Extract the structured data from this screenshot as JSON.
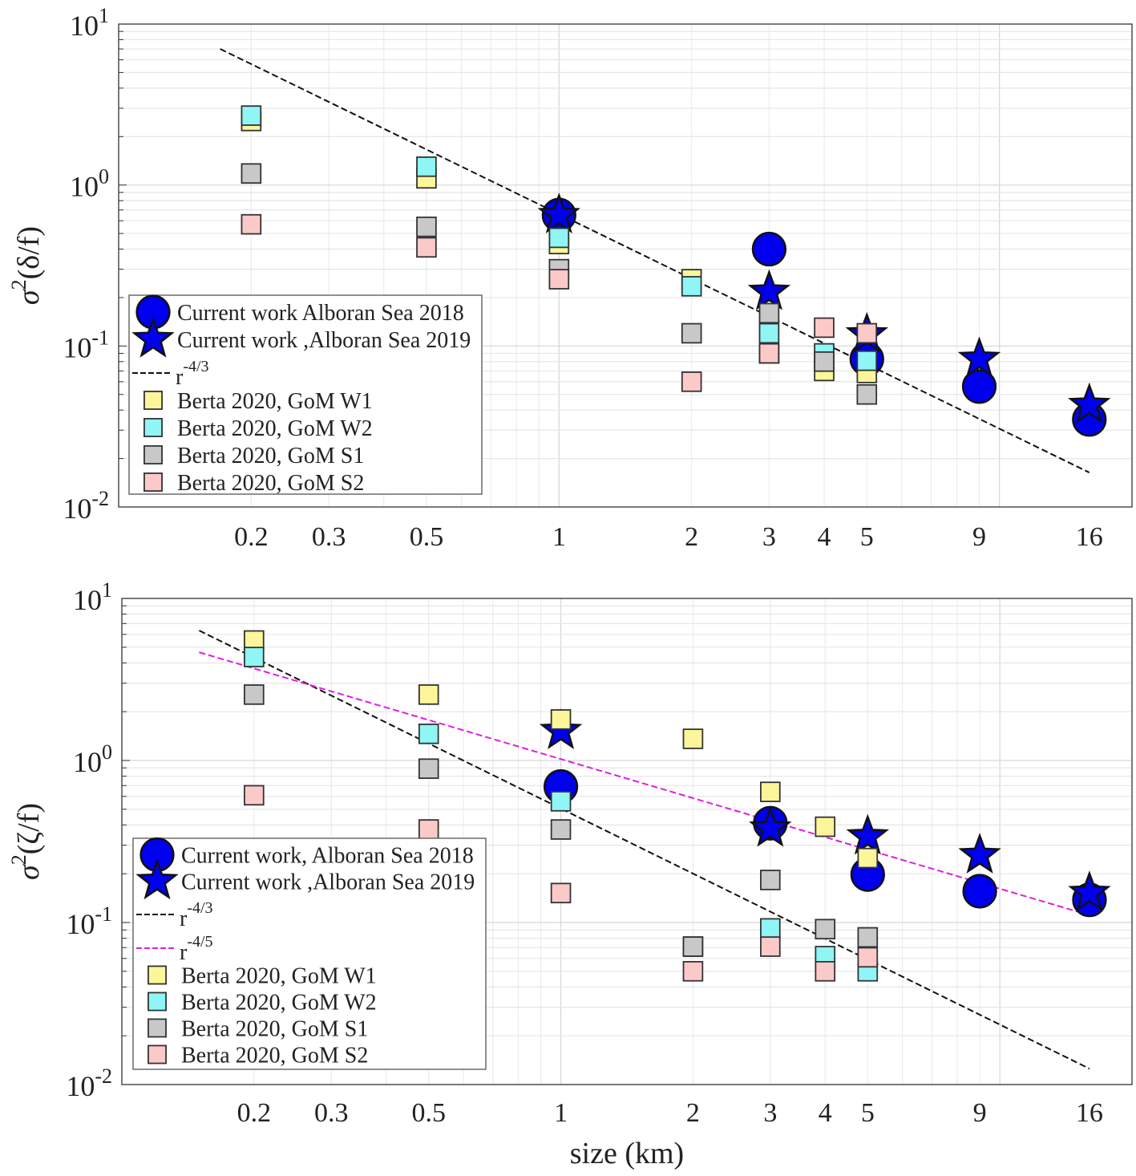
{
  "chart_data": [
    {
      "type": "scatter",
      "xscale": "log",
      "yscale": "log",
      "xlim": [
        0.1,
        20
      ],
      "ylim": [
        0.01,
        10
      ],
      "grid": true,
      "ylabel_base": "σ",
      "ylabel_sup": "2",
      "ylabel_rest": "(δ/f)",
      "xlabel": "",
      "xticks": [
        0.2,
        0.3,
        0.5,
        1,
        2,
        3,
        4,
        5,
        9,
        16
      ],
      "xtick_labels": [
        "0.2",
        "0.3",
        "0.5",
        "1",
        "2",
        "3",
        "4",
        "5",
        "9",
        "16"
      ],
      "yticks": [
        {
          "base": "10",
          "exp": "1"
        },
        {
          "base": "10",
          "exp": "0"
        },
        {
          "base": "10",
          "exp": "-1"
        },
        {
          "base": "10",
          "exp": "-2"
        }
      ],
      "legend_position": "lower-left",
      "series": [
        {
          "name": "Current work Alboran Sea 2018",
          "marker": "circle",
          "color": "#0000ee",
          "x": [
            1,
            3,
            5,
            9,
            16
          ],
          "y": [
            0.65,
            0.4,
            0.083,
            0.056,
            0.035
          ]
        },
        {
          "name": "Current work ,Alboran Sea 2019",
          "marker": "star",
          "color": "#0000ee",
          "x": [
            1,
            3,
            5,
            9,
            16
          ],
          "y": [
            0.65,
            0.217,
            0.118,
            0.083,
            0.043
          ]
        },
        {
          "name": "Berta 2020, GoM W1",
          "marker": "square",
          "color": "#fdf59a",
          "x": [
            0.2,
            0.5,
            1,
            2,
            3,
            4,
            5
          ],
          "y": [
            2.5,
            1.1,
            0.43,
            0.26,
            0.09,
            0.07,
            0.068
          ]
        },
        {
          "name": "Berta 2020, GoM W2",
          "marker": "square",
          "color": "#8ff5f5",
          "x": [
            0.2,
            0.5,
            1,
            2,
            3,
            4,
            5
          ],
          "y": [
            2.7,
            1.3,
            0.47,
            0.235,
            0.12,
            0.09,
            0.081
          ]
        },
        {
          "name": "Berta 2020, GoM S1",
          "marker": "square",
          "color": "#c8c8c8",
          "x": [
            0.2,
            0.5,
            1,
            2,
            3,
            4,
            5
          ],
          "y": [
            1.18,
            0.55,
            0.3,
            0.12,
            0.16,
            0.08,
            0.05
          ]
        },
        {
          "name": "Berta 2020, GoM S2",
          "marker": "square",
          "color": "#fcc9c9",
          "x": [
            0.2,
            0.5,
            1,
            2,
            3,
            4,
            5
          ],
          "y": [
            0.57,
            0.41,
            0.26,
            0.06,
            0.09,
            0.13,
            0.12
          ]
        }
      ],
      "fits": [
        {
          "name_base": "r",
          "name_exp": "-4/3",
          "coef": 0.66,
          "exponent": -1.3333,
          "x_range": [
            0.17,
            16
          ],
          "color": "#111111"
        }
      ],
      "legend_order": [
        "s0",
        "s1",
        "f0",
        "s2",
        "s3",
        "s4",
        "s5"
      ]
    },
    {
      "type": "scatter",
      "xscale": "log",
      "yscale": "log",
      "xlim": [
        0.1,
        20
      ],
      "ylim": [
        0.01,
        10
      ],
      "grid": true,
      "ylabel_base": "σ",
      "ylabel_sup": "2",
      "ylabel_rest": "(ζ/f)",
      "xlabel": "size (km)",
      "xticks": [
        0.2,
        0.3,
        0.5,
        1,
        2,
        3,
        4,
        5,
        9,
        16
      ],
      "xtick_labels": [
        "0.2",
        "0.3",
        "0.5",
        "1",
        "2",
        "3",
        "4",
        "5",
        "9",
        "16"
      ],
      "yticks": [
        {
          "base": "10",
          "exp": "1"
        },
        {
          "base": "10",
          "exp": "0"
        },
        {
          "base": "10",
          "exp": "-1"
        },
        {
          "base": "10",
          "exp": "-2"
        }
      ],
      "legend_position": "lower-left",
      "series": [
        {
          "name": "Current work, Alboran Sea 2018",
          "marker": "circle",
          "color": "#0000ee",
          "x": [
            1,
            3,
            5,
            9,
            16
          ],
          "y": [
            0.69,
            0.41,
            0.198,
            0.156,
            0.138
          ]
        },
        {
          "name": "Current work ,Alboran Sea 2019",
          "marker": "star",
          "color": "#0000ee",
          "x": [
            1,
            3,
            5,
            9,
            16
          ],
          "y": [
            1.52,
            0.38,
            0.34,
            0.26,
            0.152
          ]
        },
        {
          "name": "Berta 2020, GoM W1",
          "marker": "square",
          "color": "#fdf59a",
          "x": [
            0.2,
            0.5,
            1,
            2,
            3,
            4,
            5
          ],
          "y": [
            5.5,
            2.55,
            1.79,
            1.36,
            0.64,
            0.39,
            0.25
          ]
        },
        {
          "name": "Berta 2020, GoM W2",
          "marker": "square",
          "color": "#8ff5f5",
          "x": [
            0.2,
            0.5,
            1,
            2,
            3,
            4,
            5
          ],
          "y": [
            4.35,
            1.46,
            0.56,
            0.071,
            0.092,
            0.062,
            0.05
          ]
        },
        {
          "name": "Berta 2020, GoM S1",
          "marker": "square",
          "color": "#c8c8c8",
          "x": [
            0.2,
            0.5,
            1,
            2,
            3,
            4,
            5
          ],
          "y": [
            2.55,
            0.89,
            0.375,
            0.071,
            0.183,
            0.091,
            0.081
          ]
        },
        {
          "name": "Berta 2020, GoM S2",
          "marker": "square",
          "color": "#fcc9c9",
          "x": [
            0.2,
            0.5,
            1,
            2,
            3,
            4,
            5
          ],
          "y": [
            0.61,
            0.375,
            0.152,
            0.05,
            0.071,
            0.05,
            0.061
          ]
        }
      ],
      "fits": [
        {
          "name_base": "r",
          "name_exp": "-4/3",
          "coef": 0.505,
          "exponent": -1.3333,
          "x_range": [
            0.15,
            16
          ],
          "color": "#111111"
        },
        {
          "name_base": "r",
          "name_exp": "-4/5",
          "coef": 1.02,
          "exponent": -0.8,
          "x_range": [
            0.15,
            16
          ],
          "color": "#e01ee0"
        }
      ],
      "legend_order": [
        "s0",
        "s1",
        "f0",
        "f1",
        "s2",
        "s3",
        "s4",
        "s5"
      ]
    }
  ]
}
